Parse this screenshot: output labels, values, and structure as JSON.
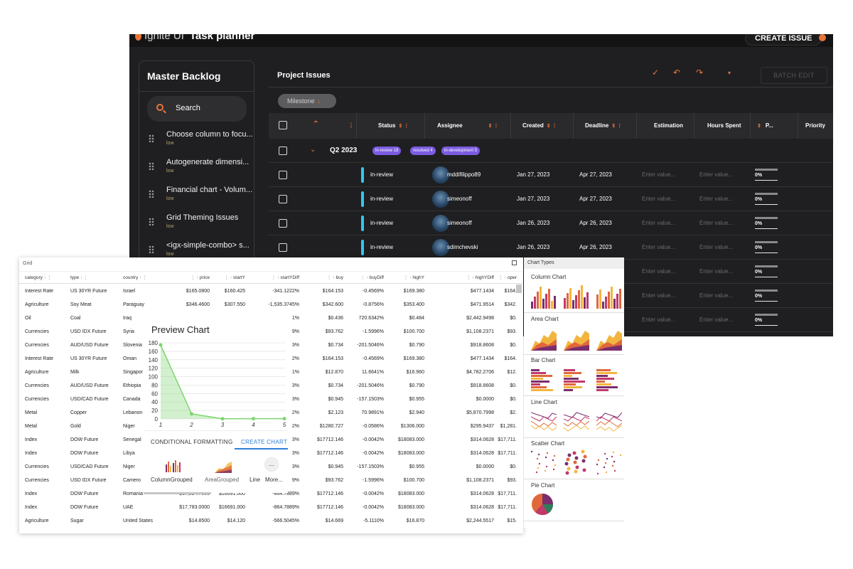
{
  "planner": {
    "logo_text": "Ignite UI",
    "app_title": "Task planner",
    "create_issue_label": "CREATE ISSUE",
    "backlog": {
      "title": "Master Backlog",
      "search_label": "Search",
      "items": [
        {
          "title": "Choose column to focu...",
          "priority": "low"
        },
        {
          "title": "Autogenerate dimensi...",
          "priority": "low"
        },
        {
          "title": "Financial chart - Volum...",
          "priority": "low"
        },
        {
          "title": "Grid Theming Issues",
          "priority": "low"
        },
        {
          "title": "<igx-simple-combo> s...",
          "priority": "low"
        }
      ]
    },
    "issues": {
      "title": "Project Issues",
      "batch_edit_label": "BATCH EDIT",
      "milestone_chip": "Milestone",
      "columns": [
        "Status",
        "Assignee",
        "Created",
        "Deadline",
        "Estimation",
        "Hours Spent",
        "P...",
        "Priority"
      ],
      "group": {
        "label": "Q2 2023",
        "chips": [
          "in-review 18",
          "resolved 4",
          "in-development 5"
        ]
      },
      "rows": [
        {
          "status": "in-review",
          "assignee": "mddifilippo89",
          "created": "Jan 27, 2023",
          "deadline": "Apr 27, 2023",
          "estimation": "Enter value...",
          "hours": "Enter value...",
          "progress": "0%"
        },
        {
          "status": "in-review",
          "assignee": "simeonoff",
          "created": "Jan 27, 2023",
          "deadline": "Apr 27, 2023",
          "estimation": "Enter value...",
          "hours": "Enter value...",
          "progress": "0%"
        },
        {
          "status": "in-review",
          "assignee": "simeonoff",
          "created": "Jan 26, 2023",
          "deadline": "Apr 26, 2023",
          "estimation": "Enter value...",
          "hours": "Enter value...",
          "progress": "0%"
        },
        {
          "status": "in-review",
          "assignee": "sdimchevski",
          "created": "Jan 26, 2023",
          "deadline": "Apr 26, 2023",
          "estimation": "Enter value...",
          "hours": "Enter value...",
          "progress": "0%"
        },
        {
          "status": "",
          "assignee": "",
          "created": "",
          "deadline": "",
          "estimation": "Enter value...",
          "hours": "Enter value...",
          "progress": "0%"
        },
        {
          "status": "",
          "assignee": "",
          "created": "",
          "deadline": "",
          "estimation": "Enter value...",
          "hours": "Enter value...",
          "progress": "0%"
        },
        {
          "status": "",
          "assignee": "",
          "created": "",
          "deadline": "",
          "estimation": "Enter value...",
          "hours": "Enter value...",
          "progress": "0%"
        }
      ]
    }
  },
  "grid": {
    "window_title": "Grid",
    "columns": [
      "category",
      "type",
      "country",
      "price",
      "startY",
      "startYDiff",
      "buy",
      "buyDiff",
      "highY",
      "highYDiff",
      "oper"
    ],
    "rows": [
      [
        "Interest Rate",
        "US 30YR Future",
        "Israel",
        "$165.0800",
        "$160.425",
        "-341.1222%",
        "$164.153",
        "-0.4569%",
        "$169.380",
        "$477.1434",
        "$164."
      ],
      [
        "Agriculture",
        "Soy Meat",
        "Paraguay",
        "$346.4600",
        "$307.550",
        "-1,535.3745%",
        "$342.600",
        "-0.8756%",
        "$353.400",
        "$471.9514",
        "$342."
      ],
      [
        "Oil",
        "Coal",
        "Iraq",
        "",
        "",
        "1%",
        "$0.436",
        "720.6342%",
        "$0.484",
        "$2,442.9498",
        "$0."
      ],
      [
        "Currencies",
        "USD IDX Future",
        "Syria",
        "",
        "",
        "9%",
        "$93.762",
        "-1.5996%",
        "$100.700",
        "$1,108.2371",
        "$93."
      ],
      [
        "Currencies",
        "AUD/USD Future",
        "Slovenia",
        "",
        "",
        "3%",
        "$0.734",
        "-201.5046%",
        "$0.790",
        "$918.8608",
        "$0."
      ],
      [
        "Interest Rate",
        "US 30YR Future",
        "Oman",
        "",
        "",
        "2%",
        "$164.153",
        "-0.4569%",
        "$169.380",
        "$477.1434",
        "$164."
      ],
      [
        "Agriculture",
        "Milk",
        "Singapor",
        "",
        "",
        "1%",
        "$12.870",
        "11.6641%",
        "$16.960",
        "$4,782.2706",
        "$12."
      ],
      [
        "Currencies",
        "AUD/USD Future",
        "Ethiopia",
        "",
        "",
        "3%",
        "$0.734",
        "-201.5046%",
        "$0.790",
        "$918.8608",
        "$0."
      ],
      [
        "Currencies",
        "USD/CAD Future",
        "Canada",
        "",
        "",
        "3%",
        "$0.945",
        "-157.1503%",
        "$0.955",
        "$0.0000",
        "$0."
      ],
      [
        "Metal",
        "Copper",
        "Lebanon",
        "",
        "",
        "2%",
        "$2.123",
        "70.9891%",
        "$2.940",
        "$5,870.7998",
        "$2."
      ],
      [
        "Metal",
        "Gold",
        "Niger",
        "",
        "",
        "2%",
        "$1280.727",
        "-0.0586%",
        "$1306.000",
        "$295.9437",
        "$1,281."
      ],
      [
        "Index",
        "DOW Future",
        "Senegal",
        "",
        "",
        "3%",
        "$17712.146",
        "-0.0042%",
        "$18083.000",
        "$314.0628",
        "$17,711."
      ],
      [
        "Index",
        "DOW Future",
        "Libya",
        "",
        "",
        "3%",
        "$17712.146",
        "-0.0042%",
        "$18083.000",
        "$314.0628",
        "$17,711."
      ],
      [
        "Currencies",
        "USD/CAD Future",
        "Niger",
        "",
        "",
        "3%",
        "$0.945",
        "-157.1503%",
        "$0.955",
        "$0.0000",
        "$0."
      ],
      [
        "Currencies",
        "USD IDX Future",
        "Camero",
        "",
        "",
        "9%",
        "$93.762",
        "-1.5996%",
        "$100.700",
        "$1,108.2371",
        "$93."
      ],
      [
        "Index",
        "DOW Future",
        "Romania",
        "$17,924.7000",
        "$16691.000",
        "-864.7889%",
        "$17712.146",
        "-0.0042%",
        "$18083.000",
        "$314.0628",
        "$17,711."
      ],
      [
        "Index",
        "DOW Future",
        "UAE",
        "$17,783.0000",
        "$16691.000",
        "-864.7889%",
        "$17712.146",
        "-0.0042%",
        "$18083.000",
        "$314.0628",
        "$17,711."
      ],
      [
        "Agriculture",
        "Sugar",
        "United States",
        "$14.8500",
        "$14.120",
        "-566.5045%",
        "$14.669",
        "-5.1110%",
        "$16.870",
        "$2,244.5517",
        "$15."
      ]
    ],
    "preview": {
      "title": "Preview Chart",
      "tabs": [
        "CONDITIONAL FORMATTING",
        "CREATE CHART"
      ],
      "options": [
        "ColumnGrouped",
        "AreaGrouped",
        "Line",
        "More..."
      ],
      "more_button": "..."
    }
  },
  "chart_data": {
    "type": "area",
    "x": [
      1,
      2,
      3,
      4,
      5
    ],
    "values": [
      175,
      12,
      0.4,
      0.7,
      0.6
    ],
    "ylim": [
      0,
      180
    ],
    "yticks": [
      0,
      20,
      40,
      60,
      80,
      100,
      120,
      140,
      160,
      180
    ],
    "xticks": [
      "1",
      "2",
      "3",
      "4",
      "5"
    ],
    "color": "#7ed56f"
  },
  "chart_types": {
    "title": "Chart Types",
    "sections": [
      "Column Chart",
      "Area Chart",
      "Bar Chart",
      "Line Chart",
      "Scatter Chart",
      "Pie Chart"
    ]
  }
}
